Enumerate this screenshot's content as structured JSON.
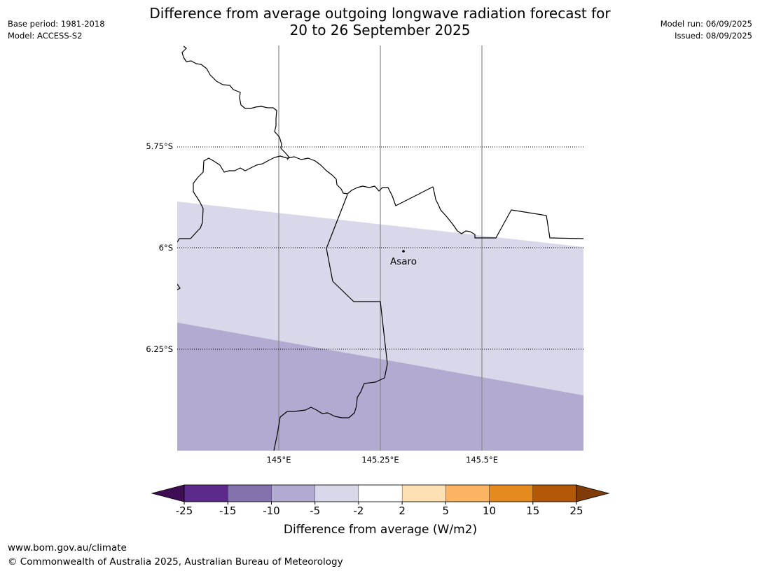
{
  "meta": {
    "base_period": "Base period: 1981-2018",
    "model": "Model: ACCESS-S2",
    "model_run": "Model run: 06/09/2025",
    "issued": "Issued: 08/09/2025"
  },
  "title": {
    "line1": "Difference from average outgoing longwave radiation forecast for",
    "line2": "20 to 26 September 2025"
  },
  "map": {
    "lat_labels": [
      "5.75°S",
      "6°S",
      "6.25°S"
    ],
    "lon_labels": [
      "145°E",
      "145.25°E",
      "145.5°E"
    ],
    "place": {
      "name": "Asaro"
    },
    "shaded_categories": [
      "-5 to -2",
      "-10 to -5"
    ]
  },
  "legend": {
    "ticks": [
      "-25",
      "-15",
      "-10",
      "-5",
      "-2",
      "2",
      "5",
      "10",
      "15",
      "25"
    ],
    "colors": [
      "#3f0d54",
      "#5b2a8a",
      "#8472ad",
      "#b2aad0",
      "#d8d8ea",
      "#ffffff",
      "#fde0b3",
      "#fbb562",
      "#e58a1e",
      "#b35806",
      "#7f3b08"
    ],
    "label": "Difference from average (W/m2)"
  },
  "footer": {
    "url": "www.bom.gov.au/climate",
    "copyright": "© Commonwealth of Australia 2025, Australian Bureau of Meteorology"
  }
}
